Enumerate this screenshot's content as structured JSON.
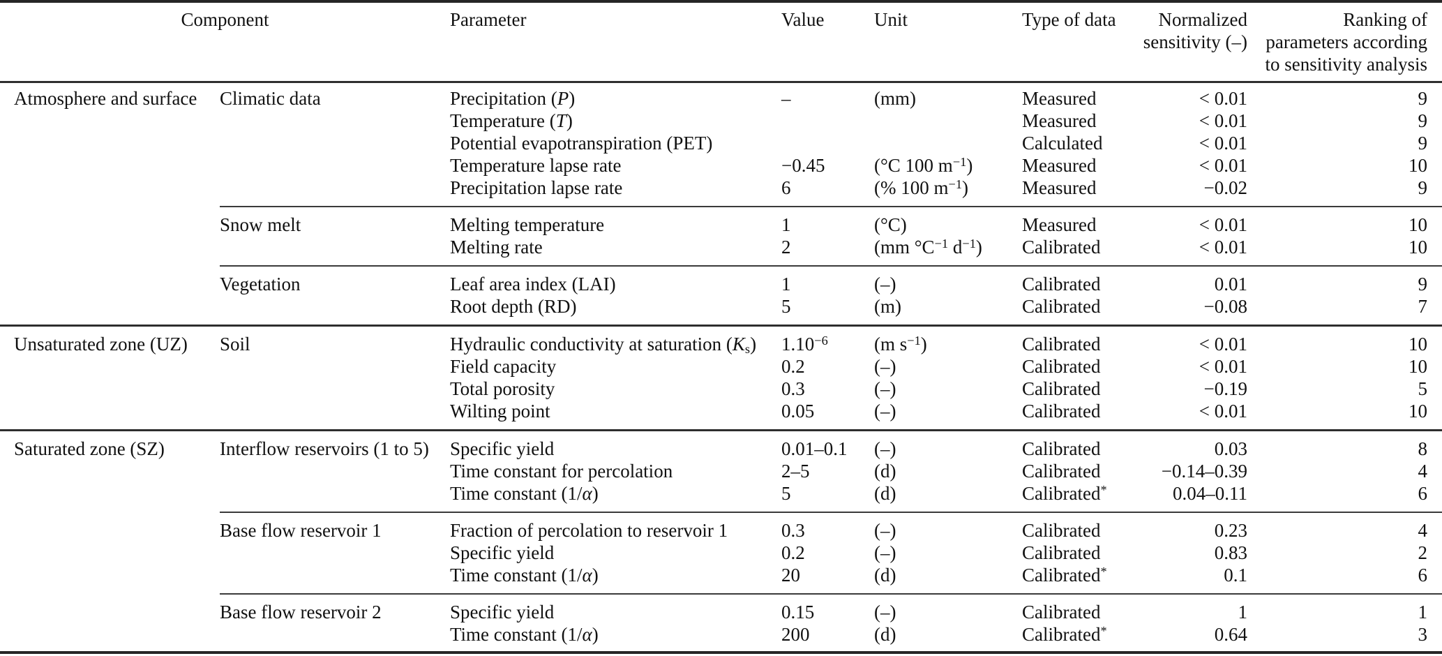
{
  "colors": {
    "background": "#ffffff",
    "text": "#111111",
    "rule_heavy": "#262626",
    "rule_major": "#2e2e2e",
    "rule_minor": "#3a3a3a"
  },
  "table": {
    "headers": {
      "component": "Component",
      "parameter": "Parameter",
      "value": "Value",
      "unit": "Unit",
      "type_of_data": "Type of data",
      "sensitivity_line1": "Normalized",
      "sensitivity_line2": "sensitivity (–)",
      "ranking_line1": "Ranking of",
      "ranking_line2": "parameters according",
      "ranking_line3": "to sensitivity analysis"
    },
    "sections": [
      {
        "component": "Atmosphere and surface",
        "groups": [
          {
            "name": "Climatic data",
            "rows": [
              {
                "parameter": [
                  {
                    "t": "Precipitation ("
                  },
                  {
                    "t": "P",
                    "s": "i"
                  },
                  {
                    "t": ")"
                  }
                ],
                "value": "–",
                "unit": "(mm)",
                "type": "Measured",
                "sens": "< 0.01",
                "rank": "9"
              },
              {
                "parameter": [
                  {
                    "t": "Temperature ("
                  },
                  {
                    "t": "T",
                    "s": "i"
                  },
                  {
                    "t": ")"
                  }
                ],
                "value": "",
                "unit": "",
                "type": "Measured",
                "sens": "< 0.01",
                "rank": "9"
              },
              {
                "parameter": "Potential evapotranspiration (PET)",
                "value": "",
                "unit": "",
                "type": "Calculated",
                "sens": "< 0.01",
                "rank": "9"
              },
              {
                "parameter": "Temperature lapse rate",
                "value": "−0.45",
                "unit": [
                  {
                    "t": "(°C 100 m"
                  },
                  {
                    "t": "−1",
                    "s": "sup"
                  },
                  {
                    "t": ")"
                  }
                ],
                "type": "Measured",
                "sens": "< 0.01",
                "rank": "10"
              },
              {
                "parameter": "Precipitation lapse rate",
                "value": "6",
                "unit": [
                  {
                    "t": "(% 100 m"
                  },
                  {
                    "t": "−1",
                    "s": "sup"
                  },
                  {
                    "t": ")"
                  }
                ],
                "type": "Measured",
                "sens": "−0.02",
                "rank": "9"
              }
            ]
          },
          {
            "name": "Snow melt",
            "rows": [
              {
                "parameter": "Melting temperature",
                "value": "1",
                "unit": "(°C)",
                "type": "Measured",
                "sens": "< 0.01",
                "rank": "10"
              },
              {
                "parameter": "Melting rate",
                "value": "2",
                "unit": [
                  {
                    "t": "(mm °C"
                  },
                  {
                    "t": "−1",
                    "s": "sup"
                  },
                  {
                    "t": " d"
                  },
                  {
                    "t": "−1",
                    "s": "sup"
                  },
                  {
                    "t": ")"
                  }
                ],
                "type": "Calibrated",
                "sens": "< 0.01",
                "rank": "10"
              }
            ]
          },
          {
            "name": "Vegetation",
            "rows": [
              {
                "parameter": "Leaf area index (LAI)",
                "value": "1",
                "unit": "(–)",
                "type": "Calibrated",
                "sens": "0.01",
                "rank": "9"
              },
              {
                "parameter": "Root depth (RD)",
                "value": "5",
                "unit": "(m)",
                "type": "Calibrated",
                "sens": "−0.08",
                "rank": "7"
              }
            ]
          }
        ]
      },
      {
        "component": "Unsaturated zone (UZ)",
        "groups": [
          {
            "name": "Soil",
            "rows": [
              {
                "parameter": [
                  {
                    "t": "Hydraulic conductivity at saturation ("
                  },
                  {
                    "t": "K",
                    "s": "i"
                  },
                  {
                    "t": "s",
                    "s": "sub"
                  },
                  {
                    "t": ")"
                  }
                ],
                "value": [
                  {
                    "t": "1.10"
                  },
                  {
                    "t": "−6",
                    "s": "sup"
                  }
                ],
                "unit": [
                  {
                    "t": "(m s"
                  },
                  {
                    "t": "−1",
                    "s": "sup"
                  },
                  {
                    "t": ")"
                  }
                ],
                "type": "Calibrated",
                "sens": "< 0.01",
                "rank": "10"
              },
              {
                "parameter": "Field capacity",
                "value": "0.2",
                "unit": "(–)",
                "type": "Calibrated",
                "sens": "< 0.01",
                "rank": "10"
              },
              {
                "parameter": "Total porosity",
                "value": "0.3",
                "unit": "(–)",
                "type": "Calibrated",
                "sens": "−0.19",
                "rank": "5"
              },
              {
                "parameter": "Wilting point",
                "value": "0.05",
                "unit": "(–)",
                "type": "Calibrated",
                "sens": "< 0.01",
                "rank": "10"
              }
            ]
          }
        ]
      },
      {
        "component": "Saturated zone (SZ)",
        "groups": [
          {
            "name": "Interflow reservoirs (1 to 5)",
            "rows": [
              {
                "parameter": "Specific yield",
                "value": "0.01–0.1",
                "unit": "(–)",
                "type": "Calibrated",
                "sens": "0.03",
                "rank": "8"
              },
              {
                "parameter": "Time constant for percolation",
                "value": "2–5",
                "unit": "(d)",
                "type": "Calibrated",
                "sens": "−0.14–0.39",
                "rank": "4"
              },
              {
                "parameter": [
                  {
                    "t": "Time constant (1/"
                  },
                  {
                    "t": "α",
                    "s": "i"
                  },
                  {
                    "t": ")"
                  }
                ],
                "value": "5",
                "unit": "(d)",
                "type": [
                  {
                    "t": "Calibrated"
                  },
                  {
                    "t": "*",
                    "s": "sup"
                  }
                ],
                "sens": "0.04–0.11",
                "rank": "6"
              }
            ]
          },
          {
            "name": "Base flow reservoir 1",
            "rows": [
              {
                "parameter": "Fraction of percolation to reservoir 1",
                "value": "0.3",
                "unit": "(–)",
                "type": "Calibrated",
                "sens": "0.23",
                "rank": "4"
              },
              {
                "parameter": "Specific yield",
                "value": "0.2",
                "unit": "(–)",
                "type": "Calibrated",
                "sens": "0.83",
                "rank": "2"
              },
              {
                "parameter": [
                  {
                    "t": "Time constant (1/"
                  },
                  {
                    "t": "α",
                    "s": "i"
                  },
                  {
                    "t": ")"
                  }
                ],
                "value": "20",
                "unit": "(d)",
                "type": [
                  {
                    "t": "Calibrated"
                  },
                  {
                    "t": "*",
                    "s": "sup"
                  }
                ],
                "sens": "0.1",
                "rank": "6"
              }
            ]
          },
          {
            "name": "Base flow reservoir 2",
            "rows": [
              {
                "parameter": "Specific yield",
                "value": "0.15",
                "unit": "(–)",
                "type": "Calibrated",
                "sens": "1",
                "rank": "1"
              },
              {
                "parameter": [
                  {
                    "t": "Time constant (1/"
                  },
                  {
                    "t": "α",
                    "s": "i"
                  },
                  {
                    "t": ")"
                  }
                ],
                "value": "200",
                "unit": "(d)",
                "type": [
                  {
                    "t": "Calibrated"
                  },
                  {
                    "t": "*",
                    "s": "sup"
                  }
                ],
                "sens": "0.64",
                "rank": "3"
              }
            ]
          }
        ]
      }
    ]
  }
}
